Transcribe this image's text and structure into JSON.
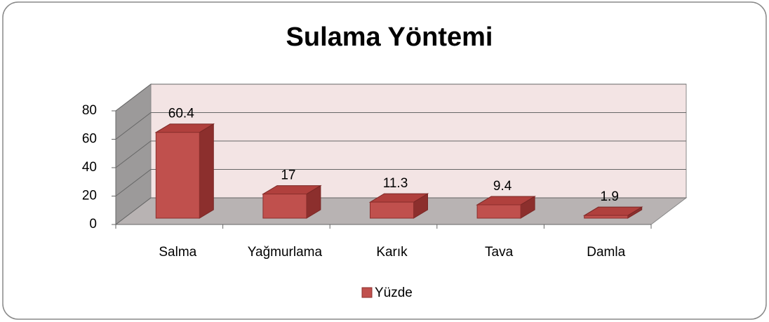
{
  "chart_data": {
    "type": "bar3d",
    "title": "Sulama Yöntemi",
    "categories": [
      "Salma",
      "Yağmurlama",
      "Karık",
      "Tava",
      "Damla"
    ],
    "series": [
      {
        "name": "Yüzde",
        "color": "#c0504d",
        "values": [
          60.4,
          17,
          11.3,
          9.4,
          1.9
        ]
      }
    ],
    "ylim": [
      0,
      80
    ],
    "yticks": [
      0,
      20,
      40,
      60,
      80
    ],
    "grid": true,
    "legend": "bottom"
  }
}
